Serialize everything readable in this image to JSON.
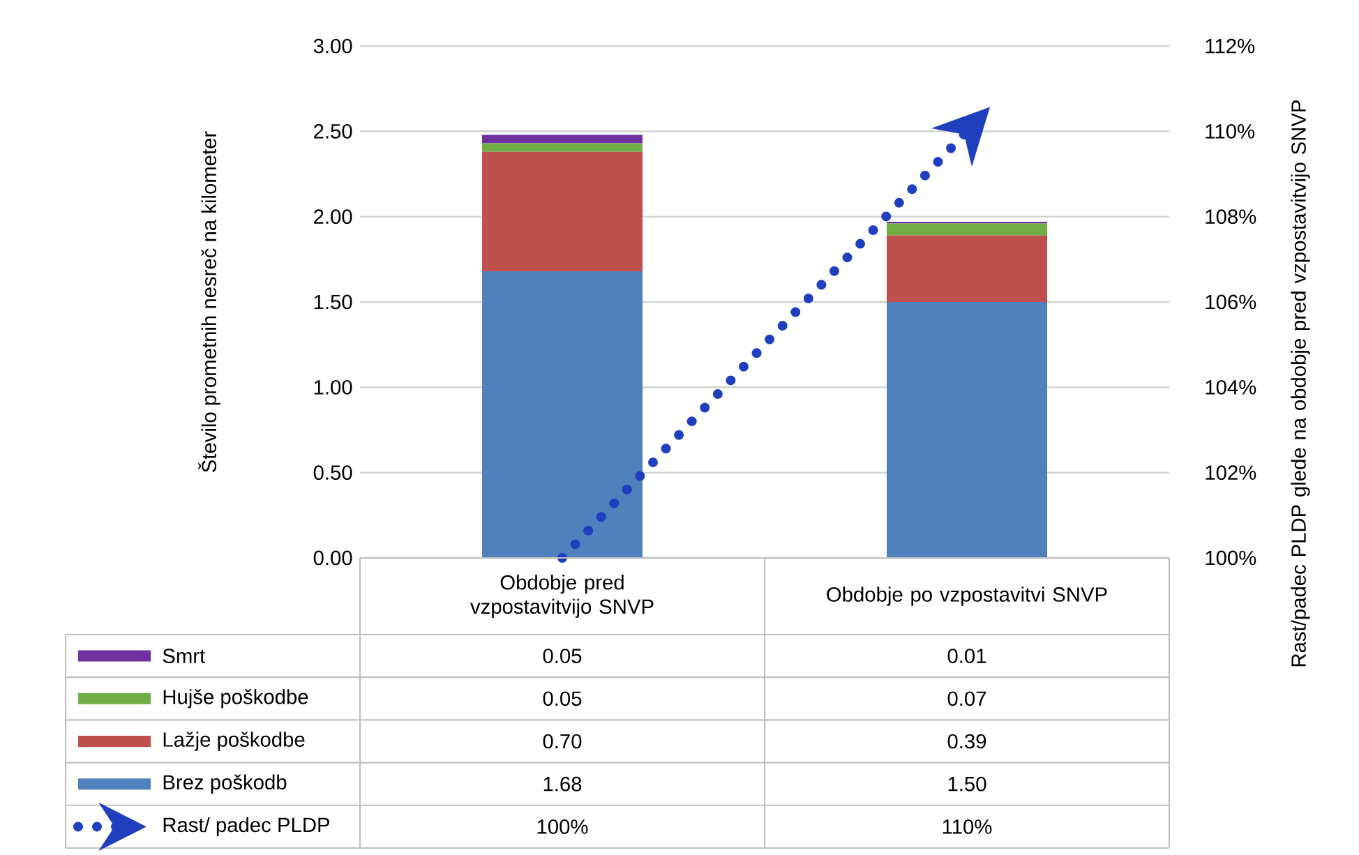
{
  "chart_data": {
    "type": "bar",
    "stacked": true,
    "ylabel": "Število prometnih nesreč na kilometer",
    "y2label": "Rast/padec PLDP glede na obdobje pred vzpostavitvijo SNVP",
    "categories": [
      "Obdobje pred vzpostavitvijo SNVP",
      "Obdobje po vzpostavitvi SNVP"
    ],
    "series": [
      {
        "name": "Brez poškodb",
        "color": "#4f81bd",
        "values": [
          1.68,
          1.5
        ],
        "value_labels": [
          "1.68",
          "1.50"
        ]
      },
      {
        "name": "Lažje poškodbe",
        "color": "#c0504d",
        "values": [
          0.7,
          0.39
        ],
        "value_labels": [
          "0.70",
          "0.39"
        ]
      },
      {
        "name": "Hujše poškodbe",
        "color": "#70ad47",
        "values": [
          0.05,
          0.07
        ],
        "value_labels": [
          "0.05",
          "0.07"
        ]
      },
      {
        "name": "Smrt",
        "color": "#7030a0",
        "values": [
          0.05,
          0.01
        ],
        "value_labels": [
          "0.05",
          "0.01"
        ]
      },
      {
        "name": "Rast/ padec PLDP",
        "type": "line",
        "axis": "y2",
        "line_style": "dotted",
        "color": "#1f3fbf",
        "values": [
          100,
          110
        ],
        "value_labels": [
          "100%",
          "110%"
        ]
      }
    ],
    "ylim": [
      0,
      3
    ],
    "yticks": [
      {
        "value": 0,
        "label": "0.00"
      },
      {
        "value": 0.5,
        "label": "0.50"
      },
      {
        "value": 1,
        "label": "1.00"
      },
      {
        "value": 1.5,
        "label": "1.50"
      },
      {
        "value": 2,
        "label": "2.00"
      },
      {
        "value": 2.5,
        "label": "2.50"
      },
      {
        "value": 3,
        "label": "3.00"
      }
    ],
    "y2lim": [
      100,
      112
    ],
    "y2ticks": [
      {
        "value": 100,
        "label": "100%"
      },
      {
        "value": 102,
        "label": "102%"
      },
      {
        "value": 104,
        "label": "104%"
      },
      {
        "value": 106,
        "label": "106%"
      },
      {
        "value": 108,
        "label": "108%"
      },
      {
        "value": 110,
        "label": "110%"
      },
      {
        "value": 112,
        "label": "112%"
      }
    ],
    "grid": "y",
    "legend": "bottom left"
  }
}
